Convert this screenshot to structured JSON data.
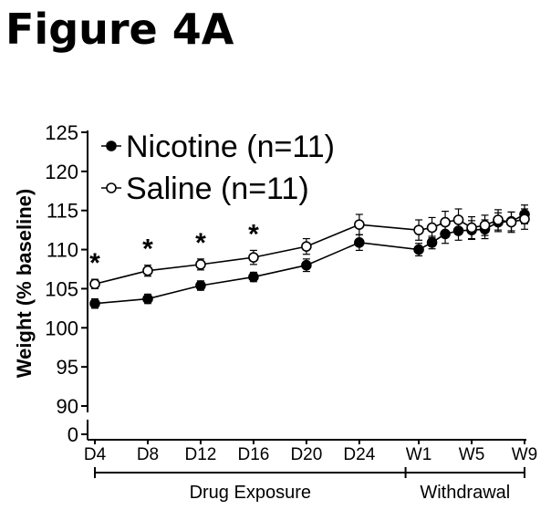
{
  "figure_title": "Figure 4A",
  "chart_data": {
    "type": "line",
    "title": "",
    "ylabel": "Weight (% baseline)",
    "xlabel": "",
    "ylim": [
      0,
      125
    ],
    "axis_break": [
      0,
      90
    ],
    "yticks": [
      0,
      90,
      95,
      100,
      105,
      110,
      115,
      120,
      125
    ],
    "x_tick_labels": [
      {
        "x": 0,
        "label": "D4"
      },
      {
        "x": 4,
        "label": "D8"
      },
      {
        "x": 8,
        "label": "D12"
      },
      {
        "x": 12,
        "label": "D16"
      },
      {
        "x": 16,
        "label": "D20"
      },
      {
        "x": 20,
        "label": "D24"
      },
      {
        "x": 24.5,
        "label": "W1"
      },
      {
        "x": 28.5,
        "label": "W5"
      },
      {
        "x": 32.5,
        "label": "W9"
      }
    ],
    "phases": [
      {
        "label": "Drug Exposure",
        "x_range": [
          0,
          23.5
        ]
      },
      {
        "label": "Withdrawal",
        "x_range": [
          23.5,
          32.5
        ]
      }
    ],
    "significance": [
      {
        "x": 0,
        "label": "*"
      },
      {
        "x": 4,
        "label": "*"
      },
      {
        "x": 8,
        "label": "*"
      },
      {
        "x": 12,
        "label": "*"
      }
    ],
    "x": [
      0,
      4,
      8,
      12,
      16,
      20,
      24.5,
      25.5,
      26.5,
      27.5,
      28.5,
      29.5,
      30.5,
      31.5,
      32.5
    ],
    "series": [
      {
        "name": "Nicotine (n=11)",
        "marker": "filled",
        "values": [
          103.1,
          103.7,
          105.4,
          106.5,
          108.0,
          110.9,
          110.0,
          110.9,
          112.0,
          112.4,
          112.5,
          112.6,
          113.5,
          113.6,
          114.5
        ],
        "errors": [
          0.6,
          0.6,
          0.6,
          0.6,
          0.8,
          1.0,
          0.8,
          0.8,
          1.2,
          1.2,
          1.2,
          1.2,
          1.2,
          1.2,
          1.2
        ]
      },
      {
        "name": "Saline (n=11)",
        "marker": "open",
        "values": [
          105.6,
          107.3,
          108.1,
          109.0,
          110.4,
          113.2,
          112.5,
          112.8,
          113.5,
          113.8,
          112.8,
          113.1,
          113.8,
          113.5,
          113.9
        ],
        "errors": [
          0.6,
          0.7,
          0.7,
          0.9,
          1.0,
          1.3,
          1.3,
          1.3,
          1.4,
          1.4,
          1.4,
          1.3,
          1.3,
          1.3,
          1.3
        ]
      }
    ],
    "legend_position": "top-left",
    "colors": {
      "axis": "#000000",
      "line": "#000000",
      "filled_marker": "#000000",
      "open_marker_fill": "#ffffff"
    }
  }
}
